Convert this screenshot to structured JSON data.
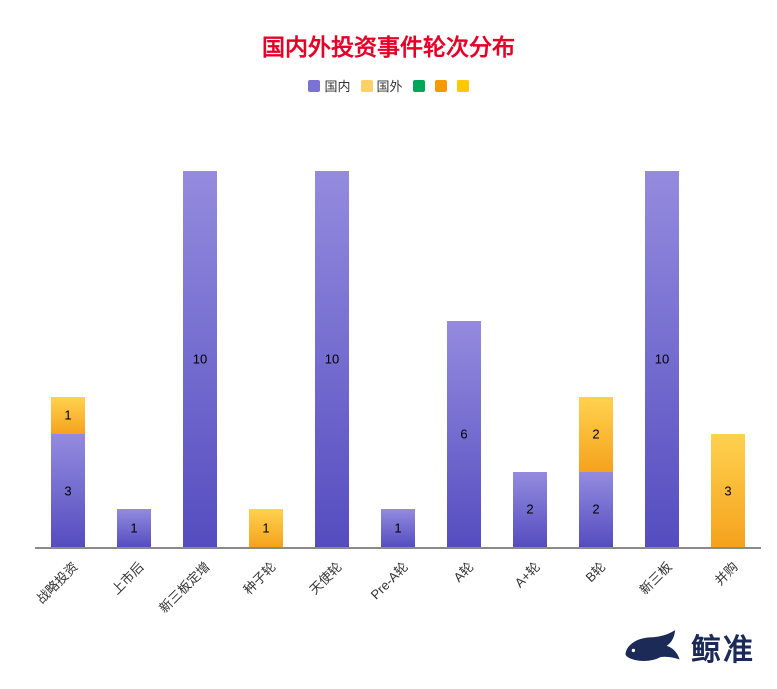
{
  "title": "国内外投资事件轮次分布",
  "colors": {
    "title": "#e60028",
    "domestic_top": "#948bdf",
    "domestic_bottom": "#554dbf",
    "foreign_top": "#ffd24f",
    "foreign_bottom": "#f5a21d",
    "axis": "#8a8a8a",
    "brand": "#1b2a56"
  },
  "legend": [
    {
      "label": "国内",
      "color": "#7b72d3"
    },
    {
      "label": "国外",
      "color": "#fbd168"
    },
    {
      "label": "",
      "color": "#00a758"
    },
    {
      "label": "",
      "color": "#f59a00"
    },
    {
      "label": "",
      "color": "#ffc800"
    }
  ],
  "chart_data": {
    "type": "bar",
    "stacked": true,
    "title": "国内外投资事件轮次分布",
    "categories": [
      "战略投资",
      "上市后",
      "新三板定增",
      "种子轮",
      "天使轮",
      "Pre-A轮",
      "A轮",
      "A+轮",
      "B轮",
      "新三板",
      "并购"
    ],
    "series": [
      {
        "name": "国内",
        "values": [
          3,
          1,
          10,
          0,
          10,
          1,
          6,
          2,
          2,
          10,
          0
        ],
        "labels": [
          "3",
          "1",
          "10",
          "0",
          "10",
          "1",
          "6",
          "2",
          "2",
          "10",
          ""
        ]
      },
      {
        "name": "国外",
        "values": [
          1,
          0,
          0,
          1,
          0,
          0,
          0,
          0,
          2,
          0,
          3
        ],
        "labels": [
          "1",
          "",
          "",
          "1",
          "",
          "",
          "",
          "",
          "2",
          "",
          "3"
        ]
      }
    ],
    "ylim": [
      0,
      10.5
    ],
    "ylabel": "",
    "xlabel": "",
    "grid": false,
    "legend_position": "top"
  },
  "watermark": {
    "brand": "鲸准"
  }
}
